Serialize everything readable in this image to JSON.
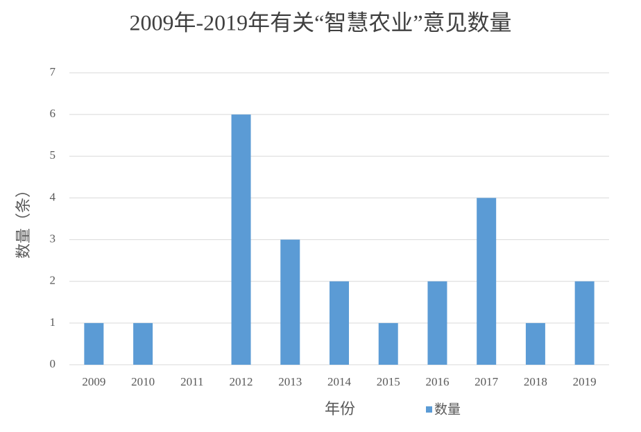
{
  "chart_data": {
    "type": "bar",
    "title": "2009年-2019年有关“智慧农业”意见数量",
    "x_label": "年份",
    "y_label": "数量（条）",
    "categories": [
      "2009",
      "2010",
      "2011",
      "2012",
      "2013",
      "2014",
      "2015",
      "2016",
      "2017",
      "2018",
      "2019"
    ],
    "series": [
      {
        "name": "数量",
        "color": "#5b9bd5",
        "values": [
          1,
          1,
          0,
          6,
          3,
          2,
          1,
          2,
          4,
          1,
          2
        ]
      }
    ],
    "ylim": [
      0,
      7
    ],
    "yticks": [
      0,
      1,
      2,
      3,
      4,
      5,
      6,
      7
    ],
    "grid": true,
    "legend": "bottom"
  }
}
